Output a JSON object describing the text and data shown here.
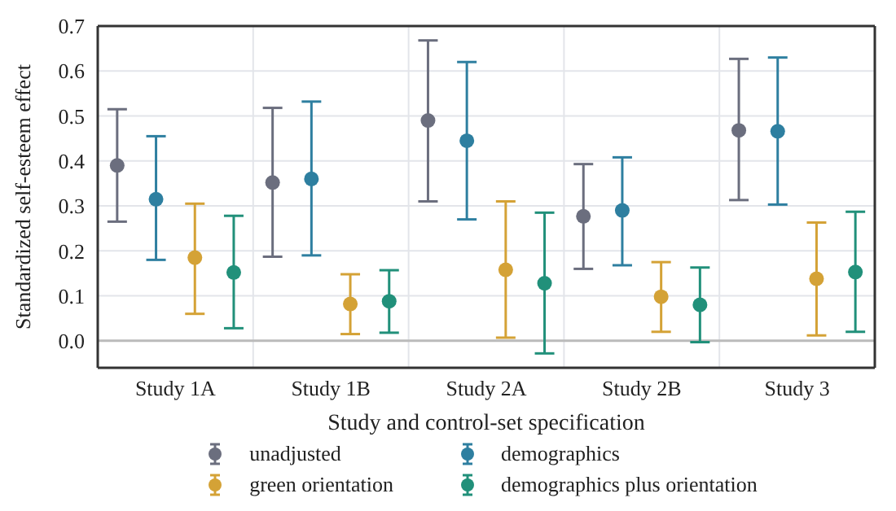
{
  "chart_data": {
    "type": "scatter",
    "xlabel": "Study and control-set specification",
    "ylabel": "Standardized self-esteem effect",
    "categories": [
      "Study 1A",
      "Study 1B",
      "Study 2A",
      "Study 2B",
      "Study 3"
    ],
    "series": [
      {
        "name": "unadjusted",
        "color": "#6b6e7e",
        "values": [
          0.39,
          0.352,
          0.49,
          0.277,
          0.468
        ],
        "errors": [
          [
            0.265,
            0.515
          ],
          [
            0.187,
            0.518
          ],
          [
            0.31,
            0.668
          ],
          [
            0.16,
            0.393
          ],
          [
            0.313,
            0.627
          ]
        ]
      },
      {
        "name": "demographics",
        "color": "#2e7fa0",
        "values": [
          0.315,
          0.36,
          0.445,
          0.29,
          0.466
        ],
        "errors": [
          [
            0.18,
            0.455
          ],
          [
            0.19,
            0.532
          ],
          [
            0.27,
            0.62
          ],
          [
            0.168,
            0.408
          ],
          [
            0.303,
            0.63
          ]
        ]
      },
      {
        "name": "green orientation",
        "color": "#d4a236",
        "values": [
          0.185,
          0.082,
          0.158,
          0.098,
          0.138
        ],
        "errors": [
          [
            0.06,
            0.305
          ],
          [
            0.015,
            0.148
          ],
          [
            0.007,
            0.31
          ],
          [
            0.02,
            0.175
          ],
          [
            0.012,
            0.263
          ]
        ]
      },
      {
        "name": "demographics plus orientation",
        "color": "#21907a",
        "values": [
          0.152,
          0.088,
          0.128,
          0.08,
          0.153
        ],
        "errors": [
          [
            0.028,
            0.278
          ],
          [
            0.018,
            0.157
          ],
          [
            -0.028,
            0.285
          ],
          [
            -0.003,
            0.163
          ],
          [
            0.02,
            0.287
          ]
        ]
      }
    ],
    "ylim": [
      -0.06,
      0.7
    ],
    "yticks": [
      {
        "value": 0,
        "label": "0.0"
      },
      0.1,
      0.2,
      0.3,
      0.4,
      0.5,
      0.6,
      0.7
    ],
    "ref_lines": [
      {
        "axis": "y",
        "value": 0,
        "color": "#bbbbbb"
      }
    ],
    "grid": true,
    "legend": "bottom",
    "marker": "circle"
  }
}
